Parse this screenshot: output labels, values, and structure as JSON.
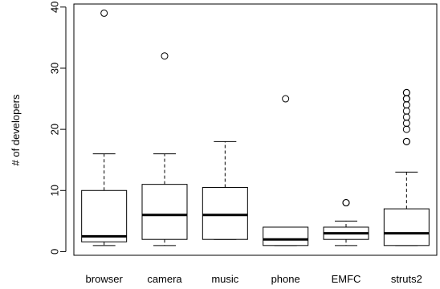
{
  "chart_data": {
    "type": "boxplot",
    "title": "",
    "xlabel": "",
    "ylabel": "# of developers",
    "ylim": [
      -0.6,
      40.5
    ],
    "yticks": [
      0,
      10,
      20,
      30,
      40
    ],
    "grid": false,
    "categories": [
      "browser",
      "camera",
      "music",
      "phone",
      "EMFC",
      "struts2"
    ],
    "boxes": [
      {
        "name": "browser",
        "whisker_low": 1,
        "q1": 1.6,
        "median": 2.5,
        "q3": 10,
        "whisker_high": 16,
        "outliers": [
          39
        ]
      },
      {
        "name": "camera",
        "whisker_low": 1,
        "q1": 2,
        "median": 6,
        "q3": 11,
        "whisker_high": 16,
        "outliers": [
          32
        ]
      },
      {
        "name": "music",
        "whisker_low": 2,
        "q1": 2,
        "median": 6,
        "q3": 10.5,
        "whisker_high": 18,
        "outliers": []
      },
      {
        "name": "phone",
        "whisker_low": 1,
        "q1": 1,
        "median": 2,
        "q3": 4,
        "whisker_high": 4,
        "outliers": [
          25
        ]
      },
      {
        "name": "EMFC",
        "whisker_low": 1,
        "q1": 2,
        "median": 3,
        "q3": 4,
        "whisker_high": 5,
        "outliers": [
          8,
          8
        ]
      },
      {
        "name": "struts2",
        "whisker_low": 1,
        "q1": 1,
        "median": 3,
        "q3": 7,
        "whisker_high": 13,
        "outliers": [
          18,
          18,
          20,
          21,
          22,
          23,
          24,
          25,
          25,
          26,
          26
        ]
      }
    ]
  }
}
